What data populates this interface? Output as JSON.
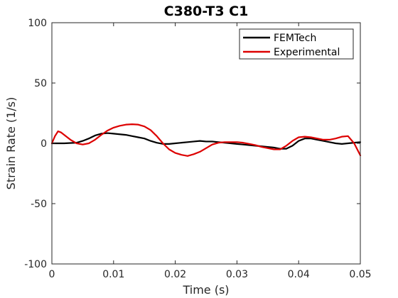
{
  "chart_data": {
    "type": "line",
    "title": "C380-T3 C1",
    "xlabel": "Time (s)",
    "ylabel": "Strain Rate (1/s)",
    "xlim": [
      0,
      0.05
    ],
    "ylim": [
      -100,
      100
    ],
    "xticks": [
      0,
      0.01,
      0.02,
      0.03,
      0.04,
      0.05
    ],
    "xtick_labels": [
      "0",
      "0.01",
      "0.02",
      "0.03",
      "0.04",
      "0.05"
    ],
    "yticks": [
      -100,
      -50,
      0,
      50,
      100
    ],
    "ytick_labels": [
      "-100",
      "-50",
      "0",
      "50",
      "100"
    ],
    "grid": false,
    "legend_position": "top-right",
    "series": [
      {
        "name": "FEMTech",
        "color": "#000000",
        "x": [
          0,
          0.002,
          0.004,
          0.005,
          0.006,
          0.007,
          0.008,
          0.009,
          0.01,
          0.011,
          0.012,
          0.013,
          0.014,
          0.015,
          0.016,
          0.017,
          0.018,
          0.019,
          0.02,
          0.021,
          0.022,
          0.023,
          0.024,
          0.025,
          0.026,
          0.027,
          0.028,
          0.029,
          0.03,
          0.031,
          0.032,
          0.033,
          0.034,
          0.035,
          0.036,
          0.037,
          0.038,
          0.039,
          0.04,
          0.041,
          0.042,
          0.043,
          0.044,
          0.045,
          0.046,
          0.047,
          0.048,
          0.049,
          0.05
        ],
        "y": [
          0,
          0,
          0.5,
          2,
          4,
          6.5,
          8,
          8.5,
          8,
          7.5,
          7,
          6,
          5,
          4,
          2,
          0.5,
          -0.5,
          -0.5,
          0,
          0.5,
          1,
          1.5,
          2,
          1.5,
          1.5,
          1,
          0.5,
          0,
          -0.5,
          -1,
          -1.5,
          -2,
          -2.5,
          -3,
          -3.5,
          -4.5,
          -4.5,
          -2,
          2,
          4,
          4,
          3,
          2,
          1,
          0,
          -0.5,
          0,
          0.5,
          1
        ]
      },
      {
        "name": "Experimental",
        "color": "#dd0000",
        "x": [
          0,
          0.0005,
          0.001,
          0.0015,
          0.002,
          0.003,
          0.004,
          0.005,
          0.006,
          0.007,
          0.008,
          0.009,
          0.01,
          0.011,
          0.012,
          0.013,
          0.014,
          0.015,
          0.016,
          0.017,
          0.018,
          0.019,
          0.02,
          0.021,
          0.022,
          0.023,
          0.024,
          0.025,
          0.026,
          0.027,
          0.028,
          0.029,
          0.03,
          0.031,
          0.032,
          0.033,
          0.034,
          0.035,
          0.036,
          0.037,
          0.038,
          0.039,
          0.04,
          0.041,
          0.042,
          0.043,
          0.044,
          0.045,
          0.046,
          0.047,
          0.048,
          0.049,
          0.05
        ],
        "y": [
          0,
          6,
          10,
          9,
          7,
          3,
          0,
          -1,
          0,
          3,
          7,
          10.5,
          13,
          14.5,
          15.5,
          15.8,
          15.5,
          14,
          11,
          6,
          0,
          -5,
          -8,
          -9.5,
          -10.5,
          -9,
          -7,
          -4,
          -1,
          0.5,
          1,
          1,
          1,
          0.5,
          -0.5,
          -1.5,
          -3,
          -4,
          -5,
          -5,
          -2,
          2,
          5,
          5.5,
          5,
          4,
          3,
          3,
          4,
          5.5,
          6,
          0,
          -10
        ]
      }
    ]
  }
}
